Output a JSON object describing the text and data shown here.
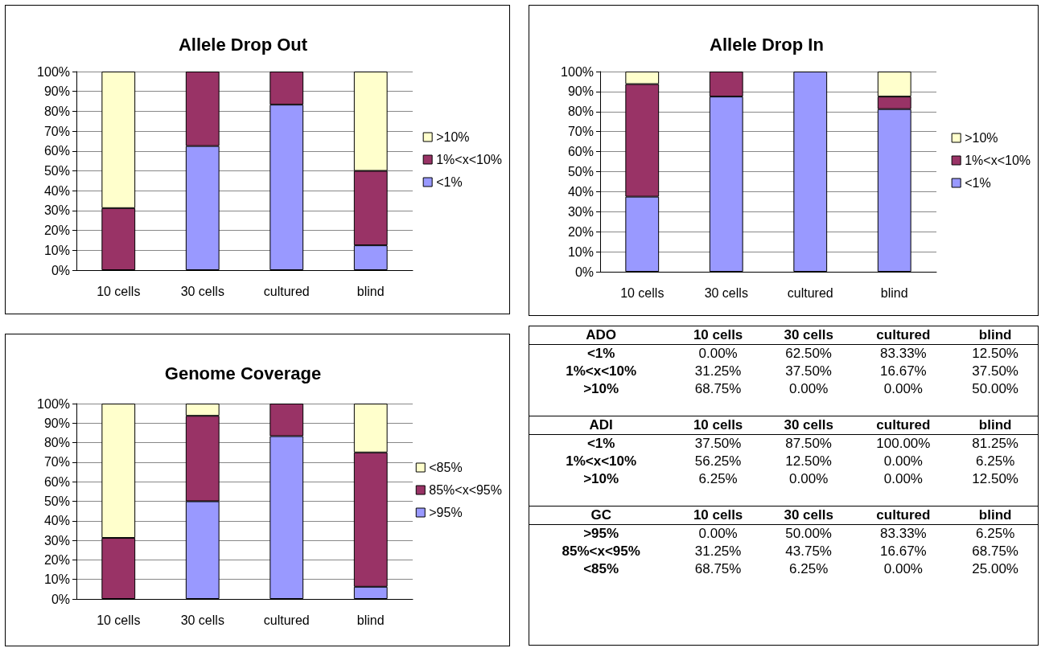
{
  "chart_data": [
    {
      "type": "bar",
      "title": "Allele Drop Out",
      "stacked": true,
      "categories": [
        "10 cells",
        "30 cells",
        "cultured",
        "blind"
      ],
      "ylim": [
        0,
        100
      ],
      "yticks": [
        {
          "value": 0,
          "label": "0%"
        },
        {
          "value": 10,
          "label": "10%"
        },
        {
          "value": 20,
          "label": "20%"
        },
        {
          "value": 30,
          "label": "30%"
        },
        {
          "value": 40,
          "label": "40%"
        },
        {
          "value": 50,
          "label": "50%"
        },
        {
          "value": 60,
          "label": "60%"
        },
        {
          "value": 70,
          "label": "70%"
        },
        {
          "value": 80,
          "label": "80%"
        },
        {
          "value": 90,
          "label": "90%"
        },
        {
          "value": 100,
          "label": "100%"
        }
      ],
      "grid": "y",
      "legend": "right",
      "series": [
        {
          "name": "<1%",
          "color": "#9999ff",
          "values": [
            0,
            62.5,
            83.33,
            12.5
          ]
        },
        {
          "name": "1%<x<10%",
          "color": "#993366",
          "values": [
            31.25,
            37.5,
            16.67,
            37.5
          ]
        },
        {
          "name": ">10%",
          "color": "#ffffcc",
          "values": [
            68.75,
            0,
            0,
            50
          ]
        }
      ]
    },
    {
      "type": "bar",
      "title": "Allele Drop In",
      "stacked": true,
      "categories": [
        "10 cells",
        "30 cells",
        "cultured",
        "blind"
      ],
      "ylim": [
        0,
        100
      ],
      "yticks": [
        {
          "value": 0,
          "label": "0%"
        },
        {
          "value": 10,
          "label": "10%"
        },
        {
          "value": 20,
          "label": "20%"
        },
        {
          "value": 30,
          "label": "30%"
        },
        {
          "value": 40,
          "label": "40%"
        },
        {
          "value": 50,
          "label": "50%"
        },
        {
          "value": 60,
          "label": "60%"
        },
        {
          "value": 70,
          "label": "70%"
        },
        {
          "value": 80,
          "label": "80%"
        },
        {
          "value": 90,
          "label": "90%"
        },
        {
          "value": 100,
          "label": "100%"
        }
      ],
      "grid": "y",
      "legend": "right",
      "series": [
        {
          "name": "<1%",
          "color": "#9999ff",
          "values": [
            37.5,
            87.5,
            100,
            81.25
          ]
        },
        {
          "name": "1%<x<10%",
          "color": "#993366",
          "values": [
            56.25,
            12.5,
            0,
            6.25
          ]
        },
        {
          "name": ">10%",
          "color": "#ffffcc",
          "values": [
            6.25,
            0,
            0,
            12.5
          ]
        }
      ]
    },
    {
      "type": "bar",
      "title": "Genome Coverage",
      "stacked": true,
      "categories": [
        "10 cells",
        "30 cells",
        "cultured",
        "blind"
      ],
      "ylim": [
        0,
        100
      ],
      "yticks": [
        {
          "value": 0,
          "label": "0%"
        },
        {
          "value": 10,
          "label": "10%"
        },
        {
          "value": 20,
          "label": "20%"
        },
        {
          "value": 30,
          "label": "30%"
        },
        {
          "value": 40,
          "label": "40%"
        },
        {
          "value": 50,
          "label": "50%"
        },
        {
          "value": 60,
          "label": "60%"
        },
        {
          "value": 70,
          "label": "70%"
        },
        {
          "value": 80,
          "label": "80%"
        },
        {
          "value": 90,
          "label": "90%"
        },
        {
          "value": 100,
          "label": "100%"
        }
      ],
      "grid": "y",
      "legend": "right",
      "series": [
        {
          "name": ">95%",
          "color": "#9999ff",
          "values": [
            0,
            50,
            83.33,
            6.25
          ]
        },
        {
          "name": "85%<x<95%",
          "color": "#993366",
          "values": [
            31.25,
            43.75,
            16.67,
            68.75
          ]
        },
        {
          "name": "<85%",
          "color": "#ffffcc",
          "values": [
            68.75,
            6.25,
            0,
            25
          ]
        }
      ]
    },
    {
      "type": "other",
      "annotations": [
        "ADO",
        "10 cells",
        "30 cells",
        "cultured",
        "blind",
        "<1%",
        "0.00%",
        "62.50%",
        "83.33%",
        "12.50%",
        "1%<x<10%",
        "31.25%",
        "37.50%",
        "16.67%",
        "37.50%",
        ">10%",
        "68.75%",
        "0.00%",
        "0.00%",
        "50.00%",
        "ADI",
        "10 cells",
        "30 cells",
        "cultured",
        "blind",
        "<1%",
        "37.50%",
        "87.50%",
        "100.00%",
        "81.25%",
        "1%<x<10%",
        "56.25%",
        "12.50%",
        "0.00%",
        "6.25%",
        ">10%",
        "6.25%",
        "0.00%",
        "0.00%",
        "12.50%",
        "GC",
        "10 cells",
        "30 cells",
        "cultured",
        "blind",
        ">95%",
        "0.00%",
        "50.00%",
        "83.33%",
        "6.25%",
        "85%<x<95%",
        "31.25%",
        "43.75%",
        "16.67%",
        "68.75%",
        "<85%",
        "68.75%",
        "6.25%",
        "0.00%",
        "25.00%"
      ]
    }
  ]
}
